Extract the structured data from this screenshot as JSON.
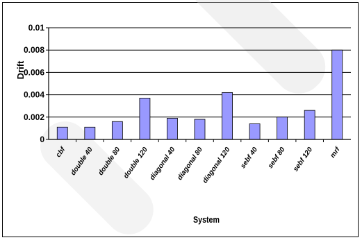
{
  "chart_data": {
    "type": "bar",
    "title": "",
    "xlabel": "System",
    "ylabel": "Drift",
    "ylim": [
      0,
      0.01
    ],
    "yticks": [
      "0",
      "0.002",
      "0.004",
      "0.006",
      "0.008",
      "0.01"
    ],
    "grid": true,
    "legend": "none",
    "bar_color": "#9999ff",
    "categories": [
      "cbf",
      "double 40",
      "double 80",
      "double 120",
      "diagonal 40",
      "diagonal 80",
      "diagonal 120",
      "sebf 40",
      "sebf 80",
      "sebf 120",
      "mrf"
    ],
    "values": [
      0.0011,
      0.0011,
      0.0016,
      0.0037,
      0.0019,
      0.0018,
      0.0042,
      0.0014,
      0.002,
      0.0026,
      0.008
    ]
  }
}
